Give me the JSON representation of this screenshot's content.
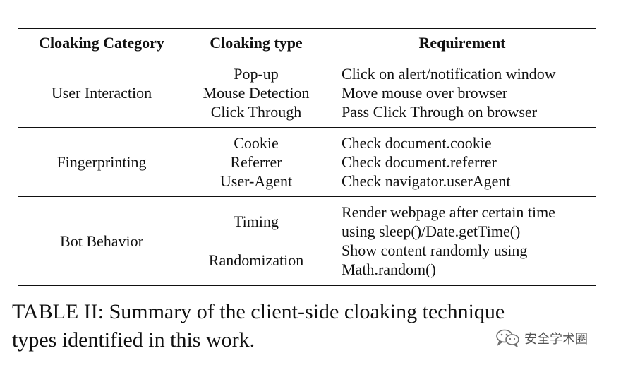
{
  "table": {
    "headers": {
      "category": "Cloaking Category",
      "type": "Cloaking type",
      "requirement": "Requirement"
    },
    "groups": [
      {
        "category": "User Interaction",
        "types": [
          "Pop-up",
          "Mouse Detection",
          "Click Through"
        ],
        "requirements": [
          "Click on alert/notification window",
          "Move mouse over browser",
          "Pass Click Through on browser"
        ]
      },
      {
        "category": "Fingerprinting",
        "types": [
          "Cookie",
          "Referrer",
          "User-Agent"
        ],
        "requirements": [
          "Check document.cookie",
          "Check document.referrer",
          "Check navigator.userAgent"
        ]
      },
      {
        "category": "Bot Behavior",
        "types": [
          "Timing",
          "Randomization"
        ],
        "requirements": [
          "Render webpage after certain time",
          "using sleep()/Date.getTime()",
          "Show content randomly using",
          "Math.random()"
        ]
      }
    ]
  },
  "caption": {
    "line1": "TABLE II: Summary of the client-side cloaking technique",
    "line2": "types identified in this work."
  },
  "watermark": {
    "text": "安全学术圈",
    "icon": "wechat-icon"
  }
}
